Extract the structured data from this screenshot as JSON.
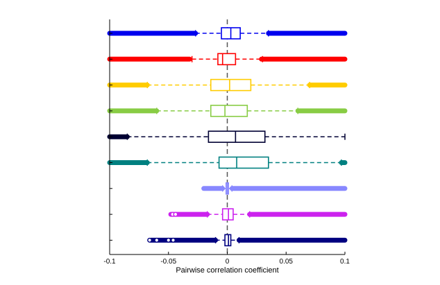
{
  "chart_data": {
    "type": "boxplot",
    "orientation": "horizontal",
    "title": "",
    "xlabel": "Pairwise correlation coefficient",
    "ylabel": "",
    "xlim": [
      -0.1,
      0.1
    ],
    "xticks": [
      -0.1,
      -0.05,
      0,
      0.05,
      0.1
    ],
    "xtick_labels": [
      "-0.1",
      "-0.05",
      "0",
      "0.05",
      "0.1"
    ],
    "reference_line": {
      "x": 0,
      "style": "dashed",
      "color": "#555555"
    },
    "grid": false,
    "legend": "none",
    "boxes": [
      {
        "color": "#0000ee",
        "q1": -0.005,
        "median": 0.003,
        "q3": 0.011,
        "whisker_low": -0.027,
        "whisker_high": 0.035,
        "outliers_low": [
          -0.1,
          -0.027
        ],
        "outliers_high": [
          0.035,
          0.1
        ]
      },
      {
        "color": "#ff0000",
        "q1": -0.008,
        "median": -0.004,
        "q3": 0.007,
        "whisker_low": -0.03,
        "whisker_high": 0.03,
        "outliers_low": [
          -0.1,
          -0.032
        ],
        "outliers_high": [
          0.029,
          0.1
        ]
      },
      {
        "color": "#ffcc00",
        "q1": -0.014,
        "median": 0.002,
        "q3": 0.02,
        "whisker_low": -0.068,
        "whisker_high": 0.07,
        "outliers_low": [
          -0.1,
          -0.068
        ],
        "outliers_high": [
          0.07,
          0.1
        ]
      },
      {
        "color": "#88cc44",
        "q1": -0.014,
        "median": -0.002,
        "q3": 0.017,
        "whisker_low": -0.06,
        "whisker_high": 0.06,
        "outliers_low": [
          -0.1,
          -0.06
        ],
        "outliers_high": [
          0.06,
          0.1
        ]
      },
      {
        "color": "#000033",
        "q1": -0.016,
        "median": 0.007,
        "q3": 0.032,
        "whisker_low": -0.085,
        "whisker_high": 0.1,
        "outliers_low": [
          -0.1,
          -0.085
        ],
        "outliers_high": []
      },
      {
        "color": "#008080",
        "q1": -0.007,
        "median": 0.008,
        "q3": 0.035,
        "whisker_low": -0.068,
        "whisker_high": 0.097,
        "outliers_low": [
          -0.1,
          -0.068
        ],
        "outliers_high": [
          0.097,
          0.1
        ]
      },
      {
        "color": "#8888ff",
        "q1": -0.001,
        "median": 0.0,
        "q3": 0.001,
        "whisker_low": -0.004,
        "whisker_high": 0.004,
        "outliers_low": [
          -0.02,
          -0.004
        ],
        "outliers_high": [
          0.004,
          0.1
        ]
      },
      {
        "color": "#cc22ee",
        "q1": -0.004,
        "median": 0.001,
        "q3": 0.005,
        "whisker_low": -0.017,
        "whisker_high": 0.019,
        "outliers_low": [
          -0.048,
          -0.017
        ],
        "outliers_high": [
          0.019,
          0.1
        ]
      },
      {
        "color": "#000080",
        "q1": -0.002,
        "median": 0.001,
        "q3": 0.003,
        "whisker_low": -0.01,
        "whisker_high": 0.01,
        "outliers_low": [
          -0.065,
          -0.01
        ],
        "outliers_high": [
          0.01,
          0.1
        ]
      }
    ]
  }
}
